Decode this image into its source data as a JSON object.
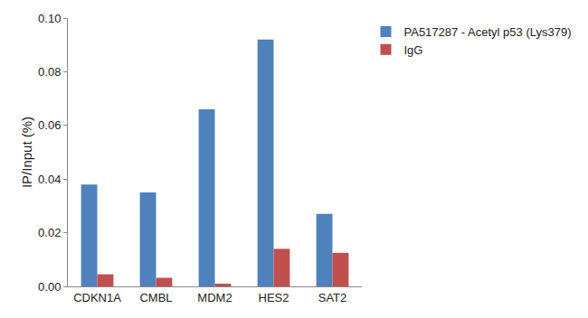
{
  "chart_data": {
    "type": "bar",
    "y_label": "IP/Input (%)",
    "categories": [
      "CDKN1A",
      "CMBL",
      "MDM2",
      "HES2",
      "SAT2"
    ],
    "series": [
      {
        "name": "PA517287 - Acetyl p53 (Lys379)",
        "color": "#4f81bd",
        "values": [
          0.038,
          0.035,
          0.066,
          0.092,
          0.027
        ]
      },
      {
        "name": "IgG",
        "color": "#c0504d",
        "values": [
          0.0045,
          0.0032,
          0.001,
          0.014,
          0.0125
        ]
      }
    ],
    "ylim": [
      0,
      0.1
    ],
    "yticks": [
      {
        "value": 0,
        "label": "0.00"
      },
      {
        "value": 0.02,
        "label": "0.02"
      },
      {
        "value": 0.04,
        "label": "0.04"
      },
      {
        "value": 0.06,
        "label": "0.06"
      },
      {
        "value": 0.08,
        "label": "0.08"
      },
      {
        "value": 0.1,
        "label": "0.10"
      }
    ],
    "grid": false,
    "legend": "upper right"
  }
}
